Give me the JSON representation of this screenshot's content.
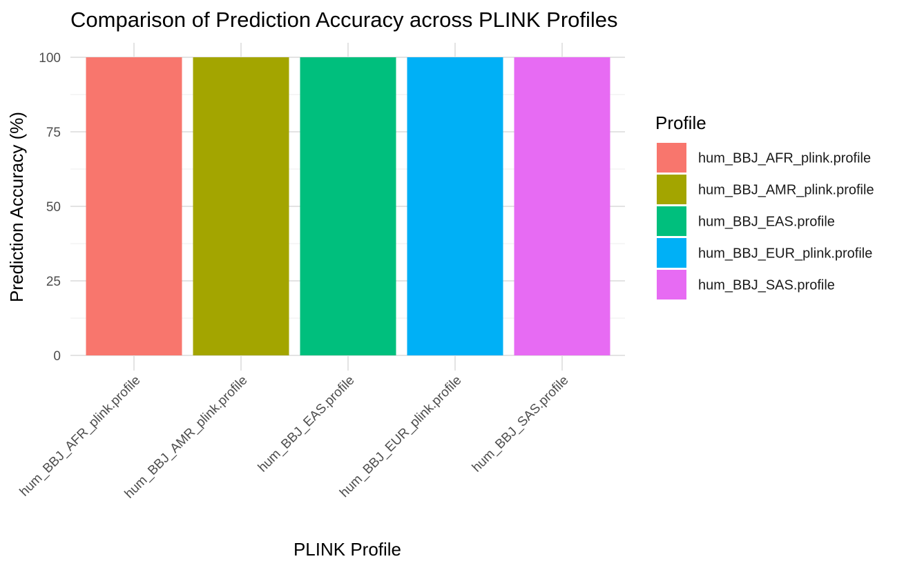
{
  "chart_data": {
    "type": "bar",
    "title": "Comparison of Prediction Accuracy across PLINK Profiles",
    "xlabel": "PLINK Profile",
    "ylabel": "Prediction Accuracy (%)",
    "categories": [
      "hum_BBJ_AFR_plink.profile",
      "hum_BBJ_AMR_plink.profile",
      "hum_BBJ_EAS.profile",
      "hum_BBJ_EUR_plink.profile",
      "hum_BBJ_SAS.profile"
    ],
    "values": [
      100,
      100,
      100,
      100,
      100
    ],
    "colors": [
      "#F8766D",
      "#A3A500",
      "#00BF7D",
      "#00B0F6",
      "#E76BF3"
    ],
    "ylim": [
      0,
      100
    ],
    "yticks": [
      0,
      25,
      50,
      75,
      100
    ],
    "grid": true,
    "legend": {
      "title": "Profile",
      "placement": "right",
      "entries": [
        "hum_BBJ_AFR_plink.profile",
        "hum_BBJ_AMR_plink.profile",
        "hum_BBJ_EAS.profile",
        "hum_BBJ_EUR_plink.profile",
        "hum_BBJ_SAS.profile"
      ]
    }
  }
}
